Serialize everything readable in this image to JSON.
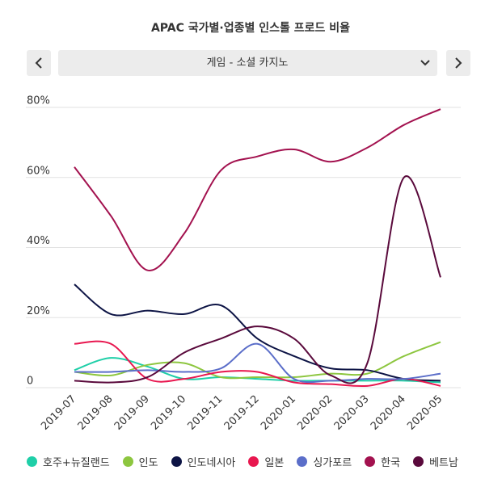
{
  "chart_data": {
    "type": "line",
    "title": "APAC 국가별·업종별 인스톨 프로드 비율",
    "selector": "게임 - 소셜 카지노",
    "categories": [
      "2019-07",
      "2019-08",
      "2019-09",
      "2019-10",
      "2019-11",
      "2019-12",
      "2020-01",
      "2020-02",
      "2020-03",
      "2020-04",
      "2020-05"
    ],
    "ylim": [
      0,
      80
    ],
    "yticks": [
      0,
      {
        "value": 20,
        "label": "20%"
      },
      {
        "value": 40,
        "label": "40%"
      },
      {
        "value": 60,
        "label": "60%"
      },
      {
        "value": 80,
        "label": "80%"
      }
    ],
    "grid": true,
    "legend": "bottom",
    "series": [
      {
        "name": "호주+뉴질랜드",
        "color": "#1fcfa8",
        "values": [
          5,
          8.5,
          6,
          2.5,
          3,
          2.5,
          2,
          2,
          2,
          2,
          1.5
        ]
      },
      {
        "name": "인도",
        "color": "#8dc63f",
        "values": [
          4.5,
          3.5,
          6.5,
          7,
          3,
          3,
          3,
          4,
          4,
          9,
          13
        ]
      },
      {
        "name": "인도네시아",
        "color": "#0d1445",
        "values": [
          29.5,
          21,
          22,
          21,
          23.5,
          14,
          9,
          5.5,
          5,
          2.5,
          2
        ]
      },
      {
        "name": "일본",
        "color": "#e8174f",
        "values": [
          12.5,
          12.5,
          2.5,
          2.5,
          4.5,
          4.5,
          1.5,
          1,
          0.5,
          2.5,
          0.5
        ]
      },
      {
        "name": "싱가포르",
        "color": "#5b6ec9",
        "values": [
          4.5,
          4.5,
          5,
          4.5,
          5.5,
          12.5,
          2.5,
          2,
          2.5,
          2.5,
          4
        ]
      },
      {
        "name": "한국",
        "color": "#a3124f",
        "values": [
          63,
          49,
          33.5,
          44,
          62,
          66,
          68,
          64.5,
          68.5,
          75,
          79.5
        ]
      },
      {
        "name": "베트남",
        "color": "#5a0a3c",
        "values": [
          2,
          1.5,
          3,
          10,
          14,
          17.5,
          14,
          3.5,
          7,
          60,
          31.5
        ]
      }
    ]
  }
}
